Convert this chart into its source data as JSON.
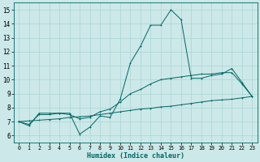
{
  "xlabel": "Humidex (Indice chaleur)",
  "xlim": [
    -0.5,
    23.5
  ],
  "ylim": [
    5.5,
    15.5
  ],
  "yticks": [
    6,
    7,
    8,
    9,
    10,
    11,
    12,
    13,
    14,
    15
  ],
  "xticks": [
    0,
    1,
    2,
    3,
    4,
    5,
    6,
    7,
    8,
    9,
    10,
    11,
    12,
    13,
    14,
    15,
    16,
    17,
    18,
    19,
    20,
    21,
    22,
    23
  ],
  "bg_color": "#cce8e8",
  "line_color": "#006666",
  "grid_color": "#b0d8d8",
  "lines": [
    {
      "x": [
        0,
        1,
        2,
        3,
        4,
        5,
        6,
        7,
        8,
        9,
        10,
        11,
        12,
        13,
        14,
        15,
        16,
        17,
        18,
        19,
        20,
        21,
        22,
        23
      ],
      "y": [
        7.0,
        6.7,
        7.6,
        7.6,
        7.6,
        7.6,
        6.1,
        6.6,
        7.4,
        7.3,
        8.6,
        11.2,
        12.4,
        13.9,
        13.9,
        15.0,
        14.3,
        10.1,
        10.1,
        10.3,
        10.4,
        10.8,
        9.8,
        8.8
      ]
    },
    {
      "x": [
        0,
        1,
        2,
        3,
        4,
        5,
        6,
        7,
        8,
        9,
        10,
        11,
        12,
        13,
        14,
        15,
        16,
        17,
        18,
        19,
        20,
        21,
        22,
        23
      ],
      "y": [
        7.0,
        6.8,
        7.5,
        7.5,
        7.6,
        7.5,
        7.2,
        7.3,
        7.7,
        7.9,
        8.4,
        9.0,
        9.3,
        9.7,
        10.0,
        10.1,
        10.2,
        10.3,
        10.4,
        10.4,
        10.5,
        10.5,
        9.7,
        8.8
      ]
    },
    {
      "x": [
        0,
        1,
        2,
        3,
        4,
        5,
        6,
        7,
        8,
        9,
        10,
        11,
        12,
        13,
        14,
        15,
        16,
        17,
        18,
        19,
        20,
        21,
        22,
        23
      ],
      "y": [
        7.0,
        7.05,
        7.1,
        7.15,
        7.2,
        7.3,
        7.35,
        7.4,
        7.5,
        7.6,
        7.7,
        7.8,
        7.9,
        7.95,
        8.05,
        8.1,
        8.2,
        8.3,
        8.4,
        8.5,
        8.55,
        8.6,
        8.7,
        8.8
      ]
    }
  ]
}
